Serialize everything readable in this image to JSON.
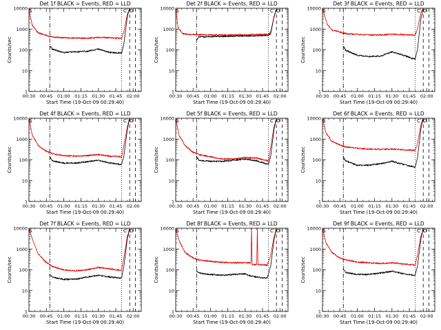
{
  "shared": {
    "xlabel": "Start Time (19-Oct-09 00:29:40)",
    "ylabel": "Counts/sec",
    "x_ticks": [
      "00:30",
      "00:45",
      "01:00",
      "01:15",
      "01:30",
      "01:45",
      "02:00"
    ],
    "y_ticks": [
      "1",
      "10",
      "100",
      "1000",
      "10000"
    ],
    "ylim": [
      1,
      10000
    ],
    "y_scale": "log",
    "xlim_minutes": [
      0,
      97
    ],
    "black_series_name": "Events",
    "red_series_name": "LLD",
    "colors": {
      "events": "#000000",
      "lld": "#e00000",
      "axes": "#000000",
      "background": "#ffffff"
    },
    "markers": [
      "S",
      "C",
      "O"
    ]
  },
  "chart_data": [
    {
      "type": "line",
      "title": "Det 1f BLACK = Events, RED = LLD",
      "vlines": [
        {
          "x": 18,
          "style": "dashdot"
        },
        {
          "x": 80,
          "style": "dotted"
        },
        {
          "x": 87,
          "style": "dashed"
        },
        {
          "x": 92,
          "style": "dashed"
        }
      ],
      "series": [
        {
          "name": "LLD",
          "x": [
            0,
            3,
            8,
            15,
            20,
            30,
            40,
            50,
            60,
            70,
            80,
            82,
            85,
            87
          ],
          "y": [
            8000,
            1500,
            650,
            500,
            420,
            380,
            370,
            360,
            400,
            380,
            360,
            800,
            5000,
            10000
          ]
        },
        {
          "name": "Events",
          "x": [
            18,
            20,
            30,
            40,
            50,
            60,
            70,
            80,
            82,
            85,
            87
          ],
          "y": [
            160,
            110,
            75,
            80,
            85,
            110,
            75,
            70,
            200,
            4000,
            10000
          ]
        }
      ]
    },
    {
      "type": "line",
      "title": "Det 2f BLACK = Events, RED = LLD",
      "vlines": [
        {
          "x": 18,
          "style": "dashdot"
        },
        {
          "x": 80,
          "style": "dotted"
        },
        {
          "x": 87,
          "style": "dashed"
        },
        {
          "x": 92,
          "style": "dashed"
        }
      ],
      "series": [
        {
          "name": "LLD",
          "x": [
            0,
            2,
            6,
            12,
            18,
            30,
            50,
            70,
            80,
            82,
            85,
            87
          ],
          "y": [
            10000,
            1200,
            600,
            550,
            540,
            520,
            520,
            540,
            560,
            700,
            4000,
            10000
          ]
        },
        {
          "name": "Events",
          "x": [
            18,
            20,
            30,
            50,
            70,
            80,
            82,
            85,
            87
          ],
          "y": [
            300,
            420,
            430,
            460,
            480,
            500,
            600,
            4000,
            10000
          ]
        }
      ]
    },
    {
      "type": "line",
      "title": "Det 3f BLACK = Events, RED = LLD",
      "vlines": [
        {
          "x": 18,
          "style": "dashdot"
        },
        {
          "x": 80,
          "style": "dotted"
        },
        {
          "x": 87,
          "style": "dashed"
        },
        {
          "x": 92,
          "style": "dashed"
        }
      ],
      "series": [
        {
          "name": "LLD",
          "x": [
            0,
            4,
            8,
            14,
            20,
            30,
            40,
            50,
            60,
            70,
            80,
            82,
            85,
            87
          ],
          "y": [
            10000,
            1800,
            900,
            750,
            600,
            550,
            520,
            520,
            560,
            530,
            520,
            1000,
            6000,
            10000
          ]
        },
        {
          "name": "Events",
          "x": [
            18,
            20,
            30,
            40,
            50,
            60,
            70,
            80,
            82,
            85,
            87
          ],
          "y": [
            150,
            95,
            55,
            48,
            50,
            80,
            55,
            35,
            100,
            3000,
            10000
          ]
        }
      ]
    },
    {
      "type": "line",
      "title": "Det 4f BLACK = Events, RED = LLD",
      "vlines": [
        {
          "x": 18,
          "style": "dashdot"
        },
        {
          "x": 80,
          "style": "dotted"
        },
        {
          "x": 87,
          "style": "dashed"
        },
        {
          "x": 92,
          "style": "dashed"
        }
      ],
      "series": [
        {
          "name": "LLD",
          "x": [
            0,
            3,
            8,
            14,
            20,
            30,
            40,
            50,
            60,
            70,
            80,
            82,
            85,
            87
          ],
          "y": [
            10000,
            1500,
            500,
            280,
            200,
            160,
            150,
            160,
            180,
            150,
            140,
            500,
            4000,
            10000
          ]
        },
        {
          "name": "Events",
          "x": [
            18,
            20,
            30,
            40,
            50,
            60,
            70,
            80,
            82,
            85,
            87
          ],
          "y": [
            140,
            90,
            70,
            70,
            80,
            95,
            70,
            60,
            150,
            3000,
            10000
          ]
        }
      ]
    },
    {
      "type": "line",
      "title": "Det 5f BLACK = Events, RED = LLD",
      "vlines": [
        {
          "x": 18,
          "style": "dashdot"
        },
        {
          "x": 80,
          "style": "dotted"
        },
        {
          "x": 87,
          "style": "dashed"
        },
        {
          "x": 92,
          "style": "dashed"
        }
      ],
      "series": [
        {
          "name": "LLD",
          "x": [
            0,
            3,
            8,
            14,
            20,
            30,
            40,
            50,
            60,
            70,
            80,
            82,
            85,
            87
          ],
          "y": [
            10000,
            1500,
            500,
            250,
            180,
            140,
            110,
            110,
            130,
            120,
            90,
            400,
            4000,
            10000
          ]
        },
        {
          "name": "Events",
          "x": [
            18,
            20,
            30,
            40,
            50,
            60,
            70,
            80,
            82,
            85,
            87
          ],
          "y": [
            150,
            95,
            85,
            85,
            95,
            110,
            90,
            60,
            150,
            3000,
            10000
          ]
        }
      ]
    },
    {
      "type": "line",
      "title": "Det 6f BLACK = Events, RED = LLD",
      "vlines": [
        {
          "x": 18,
          "style": "dashdot"
        },
        {
          "x": 80,
          "style": "dotted"
        },
        {
          "x": 87,
          "style": "dashed"
        },
        {
          "x": 92,
          "style": "dashed"
        }
      ],
      "series": [
        {
          "name": "LLD",
          "x": [
            0,
            3,
            8,
            14,
            20,
            30,
            40,
            50,
            60,
            70,
            80,
            82,
            85,
            87
          ],
          "y": [
            10000,
            2000,
            800,
            550,
            420,
            360,
            330,
            320,
            330,
            300,
            290,
            600,
            5000,
            10000
          ]
        },
        {
          "name": "Events",
          "x": [
            18,
            20,
            30,
            40,
            50,
            60,
            70,
            80,
            82,
            85,
            87
          ],
          "y": [
            140,
            90,
            55,
            55,
            65,
            85,
            60,
            45,
            120,
            3000,
            10000
          ]
        }
      ]
    },
    {
      "type": "line",
      "title": "Det 7f BLACK = Events, RED = LLD",
      "vlines": [
        {
          "x": 18,
          "style": "dashdot"
        },
        {
          "x": 80,
          "style": "dotted"
        },
        {
          "x": 87,
          "style": "dashed"
        },
        {
          "x": 92,
          "style": "dashed"
        }
      ],
      "series": [
        {
          "name": "LLD",
          "x": [
            0,
            3,
            8,
            14,
            20,
            30,
            40,
            50,
            60,
            70,
            80,
            82,
            85,
            87
          ],
          "y": [
            10000,
            3000,
            600,
            250,
            150,
            100,
            90,
            100,
            130,
            110,
            95,
            400,
            4000,
            10000
          ]
        },
        {
          "name": "Events",
          "x": [
            18,
            20,
            30,
            40,
            50,
            60,
            70,
            80,
            82,
            85,
            87
          ],
          "y": [
            60,
            45,
            35,
            35,
            45,
            55,
            45,
            40,
            150,
            3000,
            10000
          ]
        }
      ]
    },
    {
      "type": "line",
      "title": "Det 8f BLACK = Events, RED = LLD",
      "vlines": [
        {
          "x": 18,
          "style": "dashdot"
        },
        {
          "x": 80,
          "style": "dotted"
        },
        {
          "x": 87,
          "style": "dashed"
        },
        {
          "x": 92,
          "style": "dashed"
        }
      ],
      "series": [
        {
          "name": "LLD",
          "x": [
            0,
            3,
            8,
            14,
            20,
            30,
            40,
            50,
            60,
            65,
            65.5,
            66,
            70,
            70.5,
            71,
            79,
            82,
            85,
            87
          ],
          "y": [
            10000,
            2500,
            700,
            400,
            300,
            260,
            230,
            220,
            220,
            220,
            10000,
            180,
            180,
            10000,
            180,
            170,
            500,
            4000,
            10000
          ]
        },
        {
          "name": "Events",
          "x": [
            18,
            20,
            30,
            40,
            50,
            60,
            65,
            70,
            79,
            82,
            85,
            87
          ],
          "y": [
            95,
            70,
            60,
            55,
            60,
            65,
            50,
            45,
            40,
            150,
            3000,
            10000
          ]
        }
      ]
    },
    {
      "type": "line",
      "title": "Det 9f BLACK = Events, RED = LLD",
      "vlines": [
        {
          "x": 18,
          "style": "dashdot"
        },
        {
          "x": 80,
          "style": "dotted"
        },
        {
          "x": 87,
          "style": "dashed"
        },
        {
          "x": 92,
          "style": "dashed"
        }
      ],
      "series": [
        {
          "name": "LLD",
          "x": [
            0,
            3,
            8,
            14,
            20,
            30,
            40,
            50,
            60,
            70,
            80,
            82,
            85,
            87
          ],
          "y": [
            10000,
            2000,
            700,
            400,
            300,
            240,
            220,
            200,
            220,
            190,
            170,
            500,
            4000,
            10000
          ]
        },
        {
          "name": "Events",
          "x": [
            18,
            20,
            30,
            40,
            50,
            60,
            70,
            80,
            82,
            85,
            87
          ],
          "y": [
            110,
            75,
            60,
            60,
            70,
            85,
            65,
            55,
            150,
            3000,
            10000
          ]
        }
      ]
    }
  ]
}
